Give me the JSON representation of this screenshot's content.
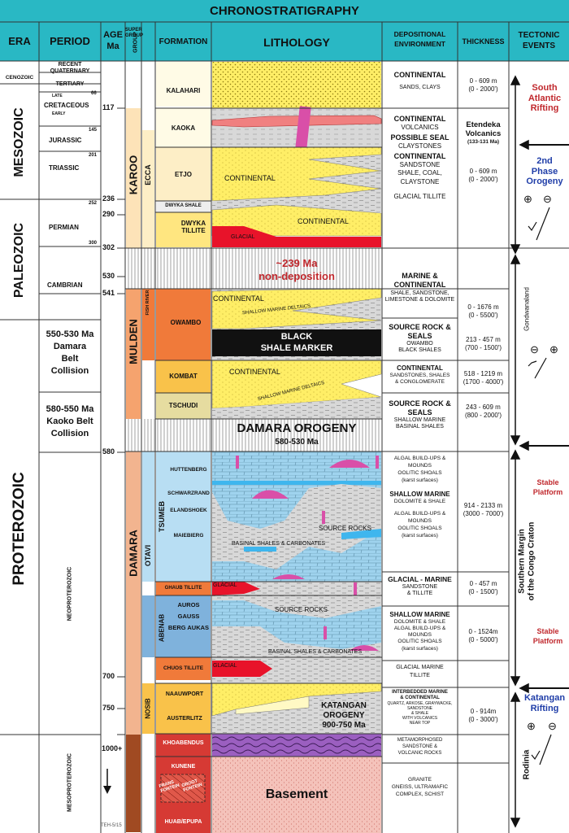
{
  "title": "CHRONOSTRATIGRAPHY",
  "headers": {
    "era": "ERA",
    "period": "PERIOD",
    "age": "AGE Ma",
    "age_line1": "AGE",
    "age_line2": "Ma",
    "supergroup": "SUPER GROUP",
    "group": "GROUP",
    "formation": "FORMATION",
    "lithology": "LITHOLOGY",
    "environment_line1": "DEPOSITIONAL",
    "environment_line2": "ENVIRONMENT",
    "thickness": "THICKNESS",
    "tectonic_line1": "TECTONIC",
    "tectonic_line2": "EVENTS"
  },
  "eras": {
    "cenozoic": "CENOZOIC",
    "mesozoic": "MESOZOIC",
    "paleozoic": "PALEOZOIC",
    "proterozoic": "PROTEROZOIC",
    "neoproterozoic": "NEOPROTEROZOIC",
    "mesoproterozoic": "MESOPROTEROZOIC"
  },
  "periods": {
    "recent_quaternary": "RECENT QUATERNARY",
    "tertiary": "TERTIARY",
    "late": "LATE",
    "cretaceous": "CRETACEOUS",
    "early": "EARLY",
    "jurassic": "JURASSIC",
    "triassic": "TRIASSIC",
    "permian": "PERMIAN",
    "cambrian": "CAMBRIAN",
    "damara_collision": [
      "550-530 Ma",
      "Damara",
      "Belt",
      "Collision"
    ],
    "kaoko_collision": [
      "580-550 Ma",
      "Kaoko Belt",
      "Collision"
    ]
  },
  "period_ages": {
    "late_cretaceous": "66",
    "jurassic": "145",
    "triassic": "201",
    "permian": "252",
    "cambrian": "300"
  },
  "ages": [
    "117",
    "236",
    "290",
    "302",
    "530",
    "541",
    "580",
    "700",
    "750",
    "1000+"
  ],
  "supergroups": {
    "karoo": "KAROO",
    "mulden": "MULDEN",
    "damara": "DAMARA"
  },
  "groups": {
    "ecca": "ECCA",
    "fish_river": "FISH RIVER",
    "otavi": "OTAVI",
    "tsumeb": "TSUMEB",
    "abenab": "ABENAB",
    "nosib": "NOSIB"
  },
  "formations": {
    "kalahari": "KALAHARI",
    "kaoka": "KAOKA",
    "etjo": "ETJO",
    "dwyka_shale": "DWYKA SHALE",
    "dwyka_tillite": "DWYKA TILLITE",
    "owambo": "OWAMBO",
    "kombat": "KOMBAT",
    "tschudi": "TSCHUDI",
    "huttenberg": "HUTTENBERG",
    "schwarzrand": "SCHWARZRAND",
    "elandshoek": "ELANDSHOEK",
    "maiebierg": "MAIEBIERG",
    "ghaub_tillite": "GHAUB TILLITE",
    "auros": "AUROS",
    "gauss": "GAUSS",
    "berg_aukas": "BERG AUKAS",
    "chuos_tillite": "CHUOS TILLITE",
    "nauuwport": "NAAUWPORT",
    "austerlitz": "AUSTERLITZ",
    "khoabendus": "KHOABENDUS",
    "kunene": "KUNENE",
    "frans_fontein": "FRANS FONTEIN",
    "groot_fontein": "GROOT FONTEIN",
    "huab_epupa": "HUAB/EPUPA"
  },
  "lithology": {
    "continental_1": "CONTINENTAL",
    "continental_2": "CONTINENTAL",
    "glacial_1": "GLACIAL",
    "non_deposition": [
      "~239 Ma",
      "non-deposition"
    ],
    "continental_3": "CONTINENTAL",
    "shallow_marine_deltaics_1": "SHALLOW MARINE DELTAICS",
    "black_shale_marker": [
      "BLACK",
      "SHALE MARKER"
    ],
    "continental_4": "CONTINENTAL",
    "shallow_marine_deltaics_2": "SHALLOW MARINE DELTAICS",
    "damara_orogeny": "DAMARA OROGENY",
    "damara_orogeny_age": "580-530 Ma",
    "source_rocks_1": "SOURCE ROCKS",
    "basinal_1": "BASINAL SHALES & CARBONATES",
    "glacial_2": "GLACIAL",
    "source_rocks_2": "SOURCE ROCKS",
    "basinal_2": "BASINAL SHALES & CARBONATES",
    "glacial_3": "GLACIAL",
    "katangan_orogeny": [
      "KATANGAN",
      "OROGENY",
      "900-750 Ma"
    ],
    "basement": "Basement"
  },
  "environments": {
    "e1": [
      "CONTINENTAL",
      "SANDS, CLAYS"
    ],
    "e2": [
      "CONTINENTAL",
      "VOLCANICS",
      "POSSIBLE SEAL",
      "CLAYSTONES",
      "CONTINENTAL",
      "SANDSTONE",
      "SHALE, COAL,",
      "CLAYSTONE",
      "GLACIAL TILLITE"
    ],
    "e3": [
      "MARINE &",
      "CONTINENTAL",
      "SHALE, SANDSTONE,",
      "LIMESTONE & DOLOMITE"
    ],
    "e4": [
      "SOURCE ROCK &",
      "SEALS",
      "OWAMBO",
      "BLACK SHALES"
    ],
    "e5": [
      "CONTINENTAL",
      "SANDSTONES, SHALES",
      "& CONGLOMERATE"
    ],
    "e6": [
      "SOURCE ROCK &",
      "SEALS",
      "SHALLOW MARINE",
      "BASINAL SHALES"
    ],
    "e7": [
      "ALGAL BUILD-UPS &",
      "MOUNDS",
      "OOLITIC SHOALS",
      "(karst surfaces)",
      "SHALLOW MARINE",
      "DOLOMITE & SHALE",
      "ALGAL BUILD-UPS &",
      "MOUNDS",
      "OOLITIC SHOALS",
      "(karst surfaces)"
    ],
    "e8": [
      "GLACIAL - MARINE",
      "SANDSTONE",
      "& TILLITE"
    ],
    "e9": [
      "SHALLOW MARINE",
      "DOLOMITE & SHALE",
      "ALGAL BUILD-UPS &",
      "MOUNDS",
      "OOLITIC SHOALS",
      "(karst surfaces)"
    ],
    "e10": [
      "GLACIAL MARINE",
      "TILLITE"
    ],
    "e11": [
      "INTERBEDDED MARINE",
      "& CONTINENTAL",
      "QUARTZ, ARKOSE, GRAYWACKE,",
      "SANDSTONE",
      "& SHALE",
      "WITH VOLCANICS",
      "NEAR TOP"
    ],
    "e12": [
      "METAMORPHOSED",
      "SANDSTONE &",
      "VOLCANIC ROCKS"
    ],
    "e13": [
      "GRANITE",
      "GNEISS, ULTRAMAFIC",
      "COMPLEX, SCHIST"
    ]
  },
  "thickness": {
    "t1": [
      "0 - 609 m",
      "(0 - 2000')"
    ],
    "t2": [
      "Etendeka",
      "Volcanics",
      "(133-131 Ma)"
    ],
    "t3": [
      "0 - 609 m",
      "(0 - 2000')"
    ],
    "t4": [
      "0 - 1676 m",
      "(0 - 5500')"
    ],
    "t5": [
      "213 - 457 m",
      "(700 - 1500')"
    ],
    "t6": [
      "518 - 1219 m",
      "(1700 - 4000')"
    ],
    "t7": [
      "243 - 609 m",
      "(800 - 2000')"
    ],
    "t8": [
      "914 - 2133 m",
      "(3000 - 7000')"
    ],
    "t9": [
      "0 - 457 m",
      "(0 - 1500')"
    ],
    "t10": [
      "0 - 1524m",
      "(0 - 5000')"
    ],
    "t11": [
      "0 - 914m",
      "(0 - 3000')"
    ]
  },
  "tectonic": {
    "south_atlantic_rifting": [
      "South",
      "Atlantic",
      "Rifting"
    ],
    "second_phase_orogeny": [
      "2nd",
      "Phase",
      "Orogeny"
    ],
    "gondwanaland": "Gondwanaland",
    "stable_platform_1": [
      "Stable",
      "Platform"
    ],
    "congo_craton": [
      "Southern Margin",
      "of the Congo Craton"
    ],
    "stable_platform_2": [
      "Stable",
      "Platform"
    ],
    "katangan_rifting": [
      "Katangan",
      "Rifting"
    ],
    "rodinia": "Rodinia",
    "plus": "⊕",
    "minus": "⊖"
  },
  "footer_code": "TEH-5/15",
  "colors": {
    "header": "#29b8c4",
    "karoo": "#fde3b8",
    "mulden": "#f5a36e",
    "damara": "#f2b48f",
    "ecca": "#fdeec6",
    "fish_river": "#f07a3a",
    "otavi": "#b8def3",
    "tsumeb": "#b8def3",
    "abenab": "#7fb2dc",
    "nosib": "#f9c24a",
    "sand_yellow": "#ffee66",
    "grey_shale": "#d8d8d8",
    "dolomite_blue": "#9fd3ee",
    "glacial_red": "#e8132a",
    "black_shale": "#111111",
    "basement_pink": "#f4c2ba",
    "purple_meta": "#9b5fc0",
    "tectonic_red": "#c0282d",
    "tectonic_blue": "#1f3da8"
  }
}
